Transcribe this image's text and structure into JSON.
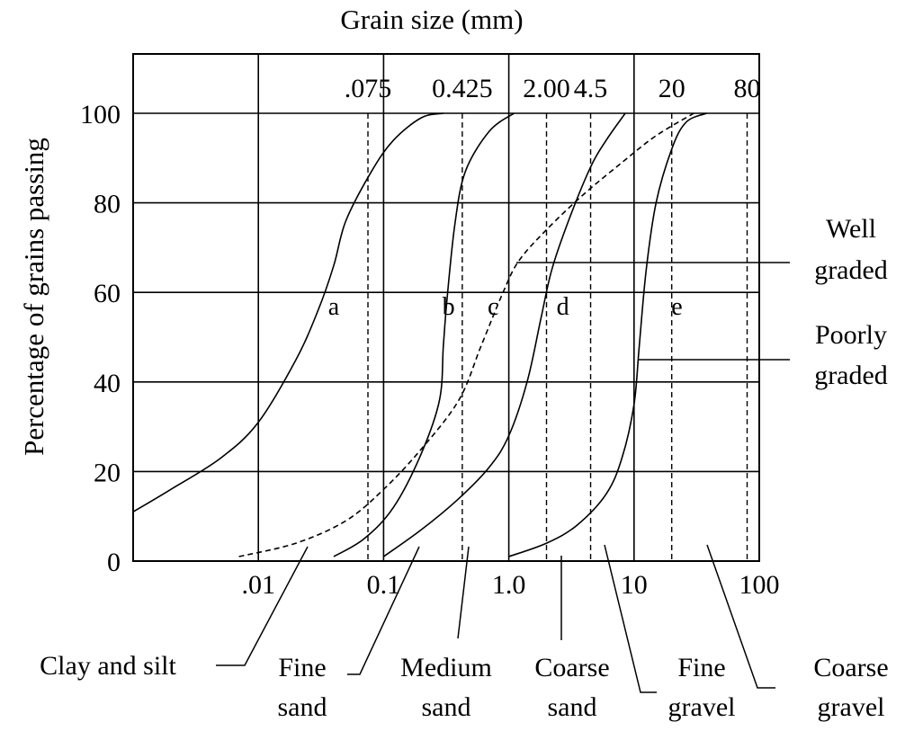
{
  "chart_data": {
    "type": "line",
    "title": "Grain size (mm)",
    "xlabel": "",
    "ylabel": "Percentage of grains passing",
    "x_scale": "log",
    "xlim": [
      0.001,
      100
    ],
    "ylim": [
      0,
      100
    ],
    "grid": true,
    "x_ticks": [
      {
        "value": 0.01,
        "label": ".01"
      },
      {
        "value": 0.1,
        "label": "0.1"
      },
      {
        "value": 1,
        "label": "1.0"
      },
      {
        "value": 10,
        "label": "10"
      },
      {
        "value": 100,
        "label": "100"
      }
    ],
    "y_ticks": [
      {
        "value": 0,
        "label": "0"
      },
      {
        "value": 20,
        "label": "20"
      },
      {
        "value": 40,
        "label": "40"
      },
      {
        "value": 60,
        "label": "60"
      },
      {
        "value": 80,
        "label": "80"
      },
      {
        "value": 100,
        "label": "100"
      }
    ],
    "sieve_sizes": [
      {
        "value": 0.075,
        "label": ".075"
      },
      {
        "value": 0.425,
        "label": "0.425"
      },
      {
        "value": 2.0,
        "label": "2.00"
      },
      {
        "value": 4.5,
        "label": "4.5"
      },
      {
        "value": 20,
        "label": "20"
      },
      {
        "value": 80,
        "label": "80"
      }
    ],
    "series": [
      {
        "name": "a",
        "style": "solid",
        "label_at": [
          0.04,
          57
        ],
        "x": [
          0.001,
          0.002,
          0.005,
          0.01,
          0.02,
          0.03,
          0.04,
          0.05,
          0.08,
          0.12,
          0.2,
          0.3
        ],
        "y": [
          11,
          16,
          23,
          31,
          45,
          56,
          66,
          76,
          87,
          94,
          99,
          100
        ]
      },
      {
        "name": "b",
        "style": "solid",
        "label_at": [
          0.33,
          57
        ],
        "x": [
          0.04,
          0.07,
          0.12,
          0.2,
          0.28,
          0.3,
          0.32,
          0.37,
          0.45,
          0.7,
          1.1
        ],
        "y": [
          1,
          5,
          12,
          24,
          36,
          48,
          58,
          75,
          87,
          96,
          100
        ]
      },
      {
        "name": "c",
        "style": "dashed",
        "label_at": [
          0.75,
          57
        ],
        "x": [
          0.007,
          0.02,
          0.05,
          0.1,
          0.2,
          0.4,
          0.6,
          0.9,
          1.2,
          2,
          4,
          8,
          15,
          30
        ],
        "y": [
          1,
          4,
          9,
          16,
          25,
          36,
          48,
          60,
          67,
          74,
          82,
          89,
          95,
          100
        ]
      },
      {
        "name": "d",
        "style": "solid",
        "label_at": [
          2.7,
          57
        ],
        "x": [
          0.1,
          0.2,
          0.4,
          0.7,
          1.0,
          1.4,
          1.8,
          2.2,
          3,
          4.5,
          6,
          8.5
        ],
        "y": [
          1,
          7,
          14,
          21,
          28,
          40,
          54,
          65,
          76,
          88,
          94,
          100
        ]
      },
      {
        "name": "e",
        "style": "solid",
        "label_at": [
          22,
          57
        ],
        "x": [
          1.0,
          2,
          3.5,
          6,
          8,
          10,
          11,
          12.5,
          15,
          20,
          26,
          38
        ],
        "y": [
          1,
          4,
          8,
          15,
          23,
          35,
          48,
          65,
          80,
          92,
          98,
          100
        ]
      }
    ]
  },
  "labels": {
    "well": "Well",
    "graded_1": "graded",
    "poorly": "Poorly",
    "graded_2": "graded",
    "clay_silt": "Clay and silt",
    "fine_sand_1": "Fine",
    "fine_sand_2": "sand",
    "medium_sand_1": "Medium",
    "medium_sand_2": "sand",
    "coarse_sand_1": "Coarse",
    "coarse_sand_2": "sand",
    "fine_gravel_1": "Fine",
    "fine_gravel_2": "gravel",
    "coarse_gravel_1": "Coarse",
    "coarse_gravel_2": "gravel"
  }
}
